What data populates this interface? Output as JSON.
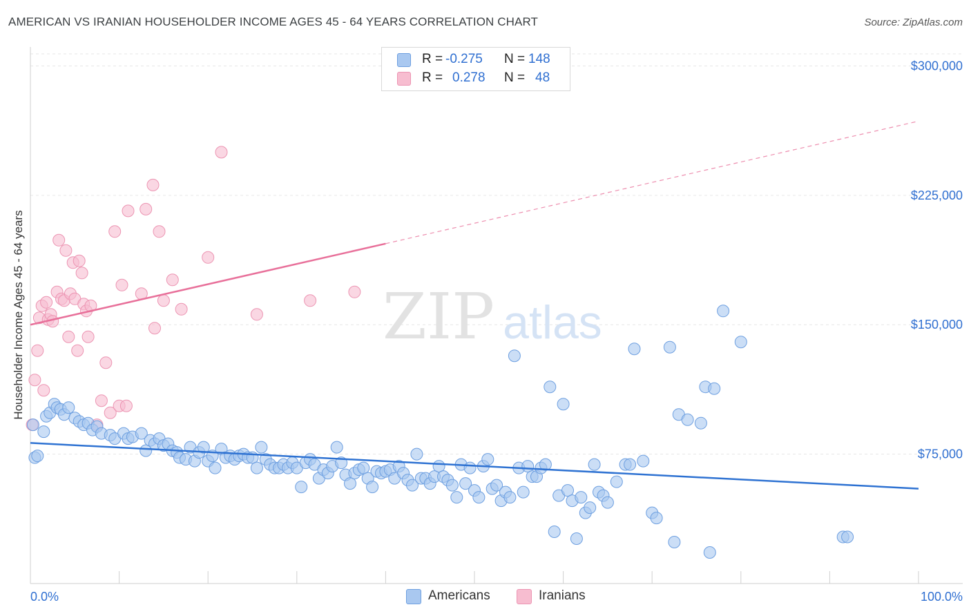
{
  "title": "AMERICAN VS IRANIAN HOUSEHOLDER INCOME AGES 45 - 64 YEARS CORRELATION CHART",
  "source": "Source: ZipAtlas.com",
  "watermark": {
    "zip": "ZIP",
    "atlas": "atlas"
  },
  "colors": {
    "american_fill": "#a9c8f0",
    "american_stroke": "#6d9fe0",
    "american_line": "#2e72d2",
    "iranian_fill": "#f7bdd0",
    "iranian_stroke": "#ec94b2",
    "iranian_line": "#e8709a",
    "value_text": "#2f6fd1"
  },
  "legend_top": {
    "rows": [
      {
        "r_label": "R =",
        "r_value": "-0.275",
        "n_label": "N =",
        "n_value": "148"
      },
      {
        "r_label": "R =",
        "r_value": "0.278",
        "n_label": "N =",
        "n_value": "48"
      }
    ]
  },
  "legend_bottom": {
    "americans": "Americans",
    "iranians": "Iranians"
  },
  "chart_data": {
    "type": "scatter",
    "ylabel": "Householder Income Ages 45 - 64 years",
    "x_tick_labels": [
      "0.0%",
      "100.0%"
    ],
    "y_tick_labels": [
      "$75,000",
      "$150,000",
      "$225,000",
      "$300,000"
    ],
    "y_ticks": [
      75000,
      150000,
      225000,
      300000
    ],
    "xlim": [
      0,
      100
    ],
    "ylim": [
      0,
      307000
    ],
    "grid": true,
    "legend_placement": "top-center and bottom",
    "series": [
      {
        "name": "Americans",
        "r": -0.275,
        "n": 148,
        "trend": {
          "x0": 0,
          "y0": 81500,
          "x1": 100,
          "y1": 55000
        },
        "points": [
          [
            0.3,
            92000
          ],
          [
            0.5,
            73000
          ],
          [
            0.8,
            74000
          ],
          [
            1.5,
            88000
          ],
          [
            1.8,
            97000
          ],
          [
            2.2,
            99000
          ],
          [
            2.7,
            104000
          ],
          [
            3.0,
            102000
          ],
          [
            3.4,
            101000
          ],
          [
            3.8,
            98000
          ],
          [
            4.3,
            102000
          ],
          [
            5.0,
            96000
          ],
          [
            5.5,
            94000
          ],
          [
            6.0,
            92000
          ],
          [
            6.5,
            93000
          ],
          [
            7.0,
            89000
          ],
          [
            7.5,
            91000
          ],
          [
            8.0,
            87000
          ],
          [
            9.0,
            86000
          ],
          [
            9.5,
            84000
          ],
          [
            10.5,
            87000
          ],
          [
            11.0,
            84000
          ],
          [
            11.5,
            85000
          ],
          [
            12.5,
            87000
          ],
          [
            13.0,
            77000
          ],
          [
            13.5,
            83000
          ],
          [
            14.0,
            81000
          ],
          [
            14.5,
            84000
          ],
          [
            15.0,
            80000
          ],
          [
            15.5,
            81000
          ],
          [
            16.0,
            77000
          ],
          [
            16.5,
            76000
          ],
          [
            16.8,
            73000
          ],
          [
            17.5,
            72000
          ],
          [
            18.0,
            79000
          ],
          [
            18.5,
            71000
          ],
          [
            19.0,
            76000
          ],
          [
            19.5,
            79000
          ],
          [
            20.0,
            71000
          ],
          [
            20.5,
            74000
          ],
          [
            20.8,
            67000
          ],
          [
            21.5,
            78000
          ],
          [
            22.0,
            73000
          ],
          [
            22.5,
            74000
          ],
          [
            23.0,
            72000
          ],
          [
            23.5,
            74000
          ],
          [
            24.0,
            75000
          ],
          [
            24.5,
            73000
          ],
          [
            25.0,
            73000
          ],
          [
            25.5,
            67000
          ],
          [
            26.0,
            79000
          ],
          [
            26.5,
            72000
          ],
          [
            27.0,
            69000
          ],
          [
            27.5,
            67000
          ],
          [
            28.0,
            67000
          ],
          [
            28.5,
            69000
          ],
          [
            29.0,
            67000
          ],
          [
            29.5,
            70000
          ],
          [
            30.0,
            67000
          ],
          [
            30.5,
            56000
          ],
          [
            31.0,
            70000
          ],
          [
            31.5,
            72000
          ],
          [
            32.0,
            69000
          ],
          [
            32.5,
            61000
          ],
          [
            33.0,
            66000
          ],
          [
            33.5,
            64000
          ],
          [
            34.0,
            68000
          ],
          [
            34.5,
            79000
          ],
          [
            35.0,
            70000
          ],
          [
            35.5,
            63000
          ],
          [
            36.0,
            58000
          ],
          [
            36.5,
            64000
          ],
          [
            37.0,
            66000
          ],
          [
            37.5,
            67000
          ],
          [
            38.0,
            61000
          ],
          [
            38.5,
            56000
          ],
          [
            39.0,
            65000
          ],
          [
            39.5,
            64000
          ],
          [
            40.0,
            65000
          ],
          [
            40.5,
            66000
          ],
          [
            41.0,
            61000
          ],
          [
            41.5,
            68000
          ],
          [
            42.0,
            64000
          ],
          [
            42.5,
            60000
          ],
          [
            43.0,
            57000
          ],
          [
            43.5,
            75000
          ],
          [
            44.0,
            61000
          ],
          [
            44.5,
            61000
          ],
          [
            45.0,
            58000
          ],
          [
            45.5,
            62000
          ],
          [
            46.0,
            68000
          ],
          [
            46.5,
            62000
          ],
          [
            47.0,
            60000
          ],
          [
            47.5,
            57000
          ],
          [
            48.0,
            50000
          ],
          [
            48.5,
            69000
          ],
          [
            49.0,
            58000
          ],
          [
            49.5,
            67000
          ],
          [
            50.0,
            54000
          ],
          [
            50.5,
            50000
          ],
          [
            51.0,
            68000
          ],
          [
            51.5,
            72000
          ],
          [
            52.0,
            55000
          ],
          [
            52.5,
            57000
          ],
          [
            53.0,
            48000
          ],
          [
            53.5,
            53000
          ],
          [
            54.0,
            50000
          ],
          [
            54.5,
            132000
          ],
          [
            55.0,
            67000
          ],
          [
            55.5,
            53000
          ],
          [
            56.0,
            68000
          ],
          [
            56.5,
            62000
          ],
          [
            57.0,
            62000
          ],
          [
            57.5,
            67000
          ],
          [
            58.0,
            69000
          ],
          [
            58.5,
            114000
          ],
          [
            59.0,
            30000
          ],
          [
            59.5,
            51000
          ],
          [
            60.0,
            104000
          ],
          [
            60.5,
            54000
          ],
          [
            61.0,
            48000
          ],
          [
            61.5,
            26000
          ],
          [
            62.0,
            50000
          ],
          [
            62.5,
            41000
          ],
          [
            63.0,
            44000
          ],
          [
            63.5,
            69000
          ],
          [
            64.0,
            53000
          ],
          [
            64.5,
            51000
          ],
          [
            65.0,
            47000
          ],
          [
            66.0,
            59000
          ],
          [
            67.0,
            69000
          ],
          [
            67.5,
            69000
          ],
          [
            68.0,
            136000
          ],
          [
            69.0,
            71000
          ],
          [
            70.0,
            41000
          ],
          [
            70.5,
            38000
          ],
          [
            72.0,
            137000
          ],
          [
            72.5,
            24000
          ],
          [
            73.0,
            98000
          ],
          [
            74.0,
            95000
          ],
          [
            75.5,
            93000
          ],
          [
            76.0,
            114000
          ],
          [
            76.5,
            18000
          ],
          [
            77.0,
            113000
          ],
          [
            78.0,
            158000
          ],
          [
            80.0,
            140000
          ],
          [
            91.5,
            27000
          ],
          [
            92.0,
            27000
          ]
        ]
      },
      {
        "name": "Iranians",
        "r": 0.278,
        "n": 48,
        "trend": {
          "x0": 0,
          "y0": 150000,
          "x1": 40,
          "y1": 197000,
          "ext_x1": 100,
          "ext_y1": 268000
        },
        "points": [
          [
            0.2,
            92000
          ],
          [
            0.5,
            118000
          ],
          [
            0.8,
            135000
          ],
          [
            1.0,
            154000
          ],
          [
            1.3,
            161000
          ],
          [
            1.5,
            112000
          ],
          [
            1.8,
            163000
          ],
          [
            2.0,
            153000
          ],
          [
            2.3,
            156000
          ],
          [
            2.5,
            152000
          ],
          [
            3.0,
            169000
          ],
          [
            3.2,
            199000
          ],
          [
            3.5,
            165000
          ],
          [
            3.8,
            164000
          ],
          [
            4.0,
            193000
          ],
          [
            4.3,
            143000
          ],
          [
            4.5,
            168000
          ],
          [
            4.8,
            186000
          ],
          [
            5.0,
            165000
          ],
          [
            5.3,
            135000
          ],
          [
            5.5,
            187000
          ],
          [
            5.8,
            180000
          ],
          [
            6.0,
            162000
          ],
          [
            6.3,
            158000
          ],
          [
            6.5,
            143000
          ],
          [
            6.8,
            161000
          ],
          [
            7.5,
            92000
          ],
          [
            8.0,
            106000
          ],
          [
            8.5,
            128000
          ],
          [
            9.0,
            99000
          ],
          [
            9.5,
            204000
          ],
          [
            10.0,
            103000
          ],
          [
            10.3,
            173000
          ],
          [
            10.8,
            103000
          ],
          [
            11.0,
            216000
          ],
          [
            12.5,
            168000
          ],
          [
            13.0,
            217000
          ],
          [
            13.8,
            231000
          ],
          [
            14.0,
            148000
          ],
          [
            14.5,
            204000
          ],
          [
            15.0,
            164000
          ],
          [
            16.0,
            176000
          ],
          [
            17.0,
            159000
          ],
          [
            20.0,
            189000
          ],
          [
            21.5,
            250000
          ],
          [
            25.5,
            156000
          ],
          [
            31.5,
            164000
          ],
          [
            36.5,
            169000
          ]
        ]
      }
    ]
  }
}
